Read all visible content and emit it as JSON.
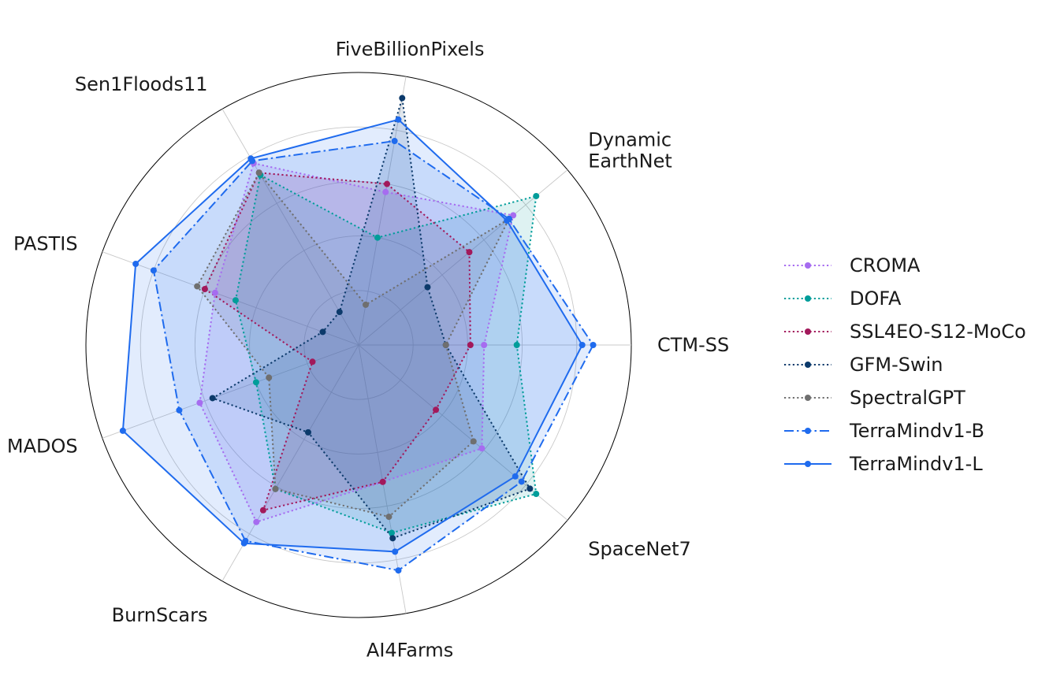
{
  "chart_data": {
    "type": "radar",
    "axes": [
      "CTM-SS",
      "SpaceNet7",
      "AI4Farms",
      "BurnScars",
      "MADOS",
      "PASTIS",
      "Sen1Floods11",
      "FiveBillionPixels",
      "Dynamic EarthNet"
    ],
    "axis_label_lines": [
      [
        "CTM-SS"
      ],
      [
        "SpaceNet7"
      ],
      [
        "AI4Farms"
      ],
      [
        "BurnScars"
      ],
      [
        "MADOS"
      ],
      [
        "PASTIS"
      ],
      [
        "Sen1Floods11"
      ],
      [
        "FiveBillionPixels"
      ],
      [
        "Dynamic",
        "EarthNet"
      ]
    ],
    "range": [
      0,
      1
    ],
    "rings": [
      0.2,
      0.4,
      0.6,
      0.8,
      1.0
    ],
    "grid": true,
    "legend_position": "right",
    "series": [
      {
        "name": "CROMA",
        "color": "#a66cf0",
        "dash": "dotted",
        "values": [
          0.46,
          0.59,
          0.51,
          0.75,
          0.62,
          0.56,
          0.77,
          0.57,
          0.74
        ]
      },
      {
        "name": "DOFA",
        "color": "#009d9a",
        "dash": "dotted",
        "values": [
          0.58,
          0.85,
          0.7,
          0.61,
          0.4,
          0.48,
          0.72,
          0.4,
          0.85
        ]
      },
      {
        "name": "SSL4EO-S12-MoCo",
        "color": "#a2195b",
        "dash": "dotted",
        "values": [
          0.41,
          0.37,
          0.51,
          0.7,
          0.18,
          0.6,
          0.73,
          0.6,
          0.53
        ]
      },
      {
        "name": "GFM-Swin",
        "color": "#0c3a6b",
        "dash": "dotted",
        "values": [
          0.32,
          0.82,
          0.72,
          0.37,
          0.57,
          0.14,
          0.14,
          0.92,
          0.33
        ]
      },
      {
        "name": "SpectralGPT",
        "color": "#6f6f6f",
        "dash": "dotted",
        "values": [
          0.32,
          0.55,
          0.64,
          0.61,
          0.35,
          0.63,
          0.73,
          0.15,
          0.72
        ]
      },
      {
        "name": "TerraMindv1-B",
        "color": "#1f6bee",
        "dash": "dashdot",
        "values": [
          0.86,
          0.78,
          0.84,
          0.83,
          0.7,
          0.8,
          0.78,
          0.76,
          0.72
        ]
      },
      {
        "name": "TerraMindv1-L",
        "color": "#1f6bee",
        "dash": "solid",
        "values": [
          0.82,
          0.75,
          0.77,
          0.84,
          0.92,
          0.87,
          0.79,
          0.84,
          0.71
        ]
      }
    ]
  }
}
